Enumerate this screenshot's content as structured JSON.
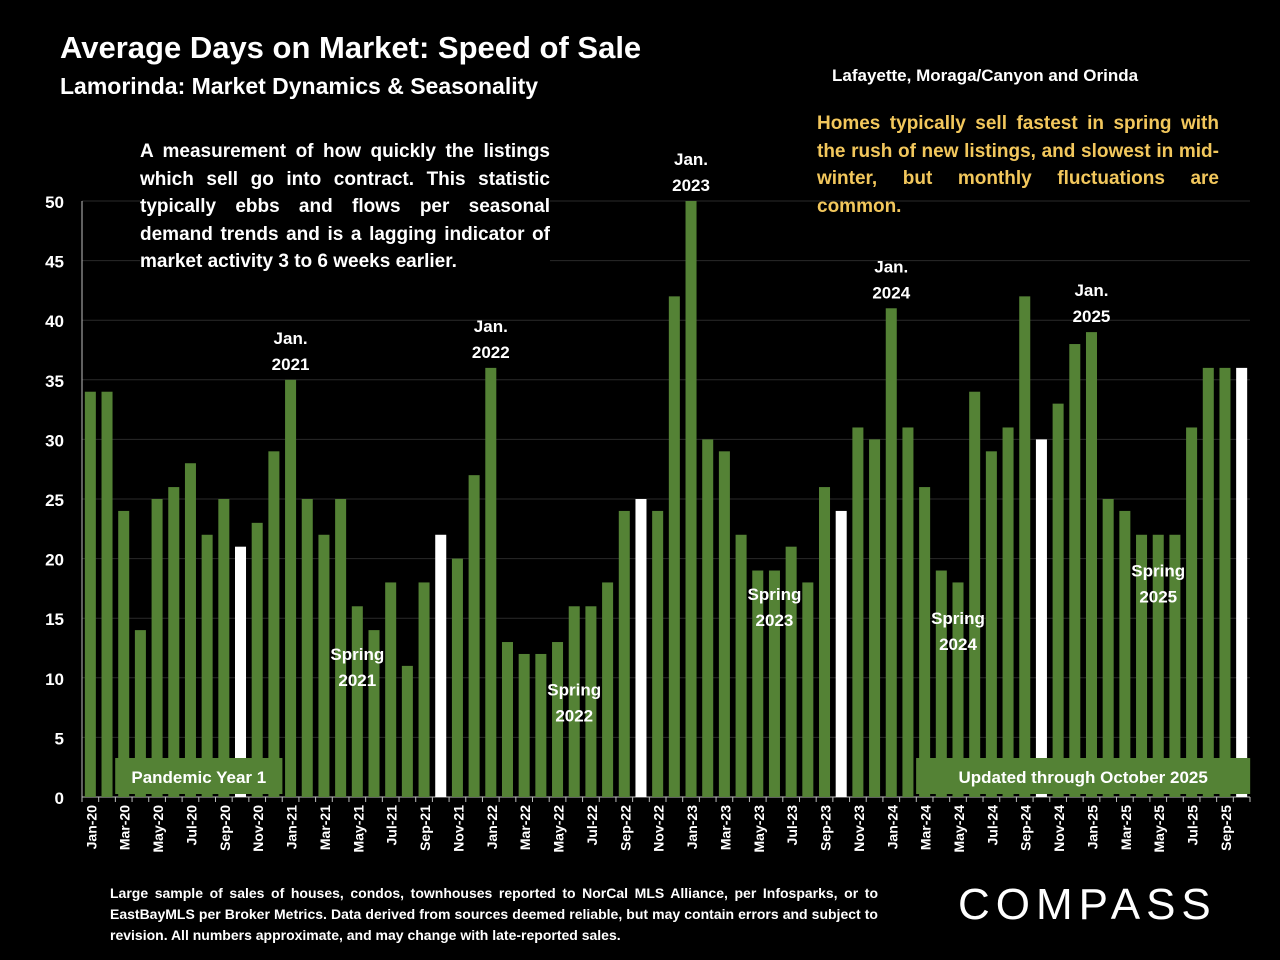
{
  "title": "Average Days on Market:  Speed of Sale",
  "subtitle": "Lamorinda: Market Dynamics & Seasonality",
  "region": "Lafayette, Moraga/Canyon and Orinda",
  "description": "A measurement of how quickly the listings which sell go into contract. This statistic typically ebbs and flows per seasonal demand trends and is a lagging indicator of market activity 3 to 6 weeks earlier.",
  "seasonality_note": "Homes typically sell fastest in spring with the rush of new listings, and slowest in mid-winter, but monthly fluctuations are common.",
  "footnote": "Large sample of sales of houses, condos, townhouses reported to NorCal MLS Alliance, per Infosparks, or to EastBayMLS per Broker Metrics. Data derived from sources deemed reliable, but may contain errors and subject to revision. All numbers approximate, and may change with late-reported sales.",
  "logo": "COMPASS",
  "colors": {
    "bar": "#548235",
    "highlight": "#ffffff",
    "note": "#f2c75c",
    "background": "#000000"
  },
  "chart_data": {
    "type": "bar",
    "ylim": [
      0,
      50
    ],
    "yticks": [
      0,
      5,
      10,
      15,
      20,
      25,
      30,
      35,
      40,
      45,
      50
    ],
    "categories": [
      "Jan-20",
      "Feb-20",
      "Mar-20",
      "Apr-20",
      "May-20",
      "Jun-20",
      "Jul-20",
      "Aug-20",
      "Sep-20",
      "Oct-20",
      "Nov-20",
      "Dec-20",
      "Jan-21",
      "Feb-21",
      "Mar-21",
      "Apr-21",
      "May-21",
      "Jun-21",
      "Jul-21",
      "Aug-21",
      "Sep-21",
      "Oct-21",
      "Nov-21",
      "Dec-21",
      "Jan-22",
      "Feb-22",
      "Mar-22",
      "Apr-22",
      "May-22",
      "Jun-22",
      "Jul-22",
      "Aug-22",
      "Sep-22",
      "Oct-22",
      "Nov-22",
      "Dec-22",
      "Jan-23",
      "Feb-23",
      "Mar-23",
      "Apr-23",
      "May-23",
      "Jun-23",
      "Jul-23",
      "Aug-23",
      "Sep-23",
      "Oct-23",
      "Nov-23",
      "Dec-23",
      "Jan-24",
      "Feb-24",
      "Mar-24",
      "Apr-24",
      "May-24",
      "Jun-24",
      "Jul-24",
      "Aug-24",
      "Sep-24",
      "Oct-24",
      "Nov-24",
      "Dec-24",
      "Jan-25",
      "Feb-25",
      "Mar-25",
      "Apr-25",
      "May-25",
      "Jun-25",
      "Jul-25",
      "Aug-25",
      "Sep-25",
      "Oct-25"
    ],
    "values": [
      34,
      34,
      24,
      14,
      25,
      26,
      28,
      22,
      25,
      21,
      23,
      29,
      35,
      25,
      22,
      25,
      16,
      14,
      18,
      11,
      18,
      22,
      20,
      27,
      36,
      13,
      12,
      12,
      13,
      16,
      16,
      18,
      24,
      25,
      24,
      42,
      50,
      30,
      29,
      22,
      19,
      19,
      21,
      18,
      26,
      24,
      31,
      30,
      41,
      31,
      26,
      19,
      18,
      34,
      29,
      31,
      42,
      30,
      33,
      38,
      39,
      25,
      24,
      22,
      22,
      22,
      31,
      36,
      36,
      36
    ],
    "highlighted": [
      "Oct-20",
      "Oct-21",
      "Oct-22",
      "Oct-23",
      "Oct-24",
      "Oct-25"
    ],
    "tick_labels": [
      "Jan-20",
      "Mar-20",
      "May-20",
      "Jul-20",
      "Sep-20",
      "Nov-20",
      "Jan-21",
      "Mar-21",
      "May-21",
      "Jul-21",
      "Sep-21",
      "Nov-21",
      "Jan-22",
      "Mar-22",
      "May-22",
      "Jul-22",
      "Sep-22",
      "Nov-22",
      "Jan-23",
      "Mar-23",
      "May-23",
      "Jul-23",
      "Sep-23",
      "Nov-23",
      "Jan-24",
      "Mar-24",
      "May-24",
      "Jul-24",
      "Sep-24",
      "Nov-24",
      "Jan-25",
      "Mar-25",
      "May-25",
      "Jul-25",
      "Sep-25"
    ],
    "annotations": [
      {
        "text": [
          "Jan.",
          "2021"
        ],
        "category": "Jan-21",
        "value": 35
      },
      {
        "text": [
          "Jan.",
          "2022"
        ],
        "category": "Jan-22",
        "value": 36
      },
      {
        "text": [
          "Jan.",
          "2023"
        ],
        "category": "Jan-23",
        "value": 50
      },
      {
        "text": [
          "Jan.",
          "2024"
        ],
        "category": "Jan-24",
        "value": 41
      },
      {
        "text": [
          "Jan.",
          "2025"
        ],
        "category": "Jan-25",
        "value": 39
      },
      {
        "text": [
          "Spring",
          "2021"
        ],
        "category": "May-21",
        "value": 10
      },
      {
        "text": [
          "Spring",
          "2022"
        ],
        "category": "Jun-22",
        "value": 7
      },
      {
        "text": [
          "Spring",
          "2023"
        ],
        "category": "Jun-23",
        "value": 15
      },
      {
        "text": [
          "Spring",
          "2024"
        ],
        "category": "May-24",
        "value": 13
      },
      {
        "text": [
          "Spring",
          "2025"
        ],
        "category": "May-25",
        "value": 17
      }
    ],
    "banners": [
      {
        "text": "Pandemic Year 1",
        "from": "Mar-20",
        "to": "Dec-20"
      },
      {
        "text": "Updated through October 2025",
        "from": "Mar-24",
        "to": "Oct-25"
      }
    ]
  }
}
